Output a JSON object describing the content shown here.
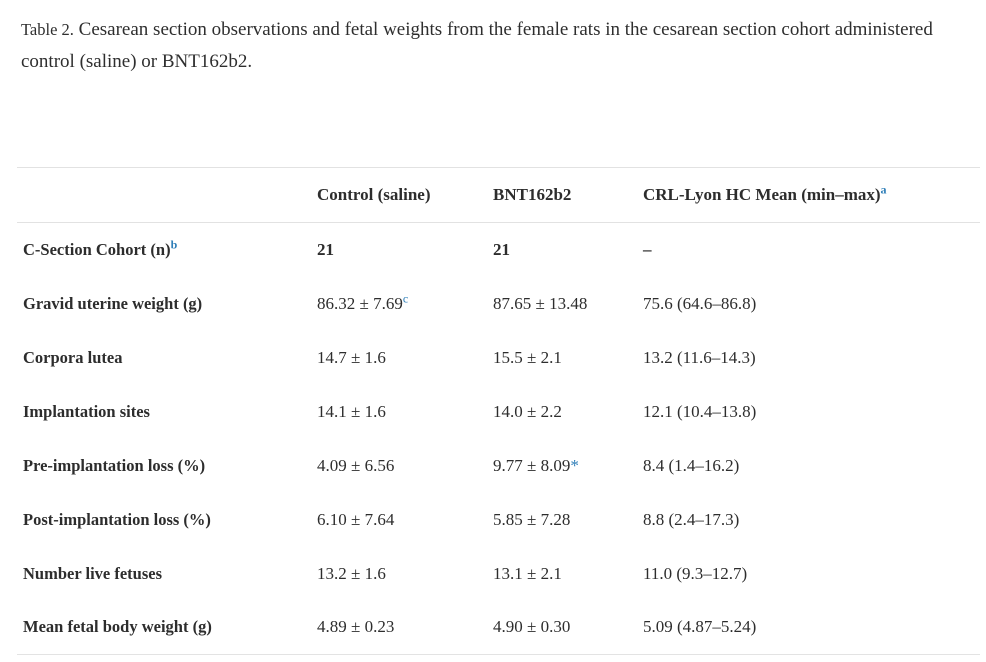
{
  "caption": {
    "label": "Table 2.",
    "text": "Cesarean section observations and fetal weights from the female rats in the cesarean section cohort administered control (saline) or BNT162b2."
  },
  "table": {
    "columns": [
      {
        "label": ""
      },
      {
        "label": "Control (saline)"
      },
      {
        "label": "BNT162b2"
      },
      {
        "label": "CRL-Lyon HC Mean (min–max)",
        "sup": "a"
      }
    ],
    "rows": [
      {
        "label": "C-Section Cohort (n)",
        "label_sup": "b",
        "values": [
          {
            "text": "21"
          },
          {
            "text": "21"
          },
          {
            "text": "–"
          }
        ]
      },
      {
        "label": "Gravid uterine weight (g)",
        "values": [
          {
            "text": "86.32 ± 7.69",
            "sup": "c"
          },
          {
            "text": "87.65 ± 13.48"
          },
          {
            "text": "75.6 (64.6–86.8)"
          }
        ]
      },
      {
        "label": "Corpora lutea",
        "values": [
          {
            "text": "14.7 ± 1.6"
          },
          {
            "text": "15.5 ± 2.1"
          },
          {
            "text": "13.2 (11.6–14.3)"
          }
        ]
      },
      {
        "label": "Implantation sites",
        "values": [
          {
            "text": "14.1 ± 1.6"
          },
          {
            "text": "14.0 ± 2.2"
          },
          {
            "text": "12.1 (10.4–13.8)"
          }
        ]
      },
      {
        "label": "Pre-implantation loss (%)",
        "values": [
          {
            "text": "4.09 ± 6.56"
          },
          {
            "text": "9.77 ± 8.09",
            "star": "*"
          },
          {
            "text": "8.4 (1.4–16.2)"
          }
        ]
      },
      {
        "label": "Post-implantation loss (%)",
        "values": [
          {
            "text": "6.10 ± 7.64"
          },
          {
            "text": "5.85 ± 7.28"
          },
          {
            "text": "8.8 (2.4–17.3)"
          }
        ]
      },
      {
        "label": "Number live fetuses",
        "values": [
          {
            "text": "13.2 ± 1.6"
          },
          {
            "text": "13.1 ± 2.1"
          },
          {
            "text": "11.0 (9.3–12.7)"
          }
        ]
      },
      {
        "label": "Mean fetal body weight (g)",
        "values": [
          {
            "text": "4.89 ± 0.23"
          },
          {
            "text": "4.90 ± 0.30"
          },
          {
            "text": "5.09 (4.87–5.24)"
          }
        ]
      }
    ]
  },
  "colors": {
    "text": "#2d2d2d",
    "footnote_blue": "#2e7eb8",
    "rule": "#e2e2e2"
  }
}
